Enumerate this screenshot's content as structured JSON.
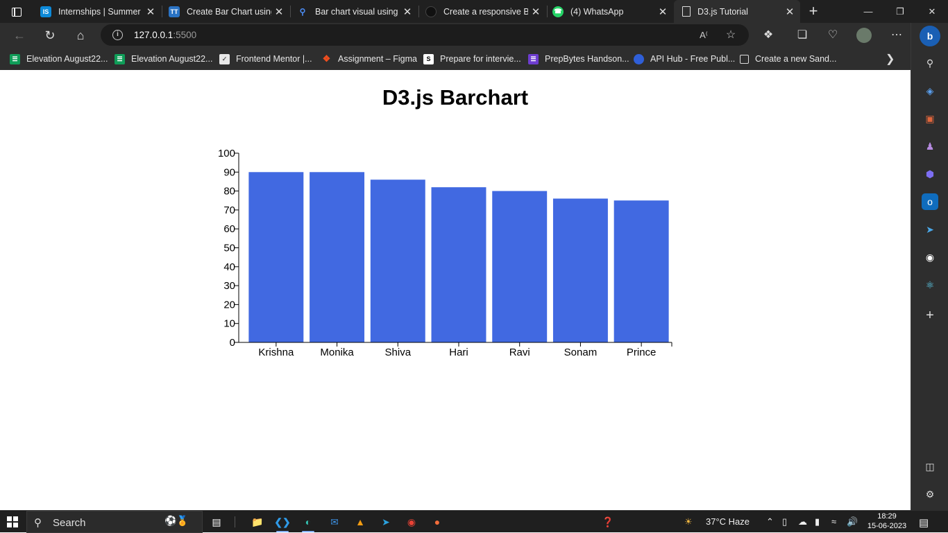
{
  "browser": {
    "tabs": [
      {
        "title": "Internships | Summer I",
        "favicon": "internshala-icon",
        "favicon_text": "IS",
        "favicon_color": "#0d8ad9"
      },
      {
        "title": "Create Bar Chart using",
        "favicon": "tutorialspoint-icon",
        "favicon_text": "TT",
        "favicon_color": "#2a73c4"
      },
      {
        "title": "Bar chart visual using I",
        "favicon": "search-icon",
        "favicon_text": "",
        "favicon_color": "#202020"
      },
      {
        "title": "Create a responsive Ba",
        "favicon": "dark-circle-icon",
        "favicon_text": "",
        "favicon_color": "#111111"
      },
      {
        "title": "(4) WhatsApp",
        "favicon": "whatsapp-icon",
        "favicon_text": "",
        "favicon_color": "#25d366"
      },
      {
        "title": "D3.js Tutorial",
        "favicon": "page-icon",
        "favicon_text": "",
        "favicon_color": "#2e2e2e",
        "active": true
      }
    ],
    "address": {
      "host": "127.0.0.1",
      "port": ":5500"
    },
    "favorites": [
      {
        "label": "Elevation August22...",
        "icon": "sheets-icon",
        "color": "#0f9d58"
      },
      {
        "label": "Elevation August22...",
        "icon": "sheets-icon",
        "color": "#0f9d58"
      },
      {
        "label": "Frontend Mentor |...",
        "icon": "frontend-mentor-icon",
        "color": "#e8e8e8"
      },
      {
        "label": "Assignment – Figma",
        "icon": "figma-icon",
        "color": "#f24e1e"
      },
      {
        "label": "Prepare for intervie...",
        "icon": "s-icon",
        "color": "#ffffff"
      },
      {
        "label": "PrepBytes Handson...",
        "icon": "prepbytes-icon",
        "color": "#6d3ccf"
      },
      {
        "label": "API Hub - Free Publ...",
        "icon": "api-hub-icon",
        "color": "#2f5fd8"
      },
      {
        "label": "Create a new Sand...",
        "icon": "sandbox-icon",
        "color": "#2e2e2e"
      }
    ]
  },
  "page": {
    "title": "D3.js Barchart"
  },
  "chart_data": {
    "type": "bar",
    "title": "D3.js Barchart",
    "categories": [
      "Krishna",
      "Monika",
      "Shiva",
      "Hari",
      "Ravi",
      "Sonam",
      "Prince"
    ],
    "values": [
      90,
      90,
      86,
      82,
      80,
      76,
      75
    ],
    "ylim": [
      0,
      100
    ],
    "yticks": [
      0,
      10,
      20,
      30,
      40,
      50,
      60,
      70,
      80,
      90,
      100
    ],
    "xlabel": "",
    "ylabel": "",
    "grid": false,
    "bar_color": "#4169e1"
  },
  "taskbar": {
    "search_label": "Search",
    "weather": "37°C  Haze",
    "time": "18:29",
    "date": "15-06-2023"
  }
}
